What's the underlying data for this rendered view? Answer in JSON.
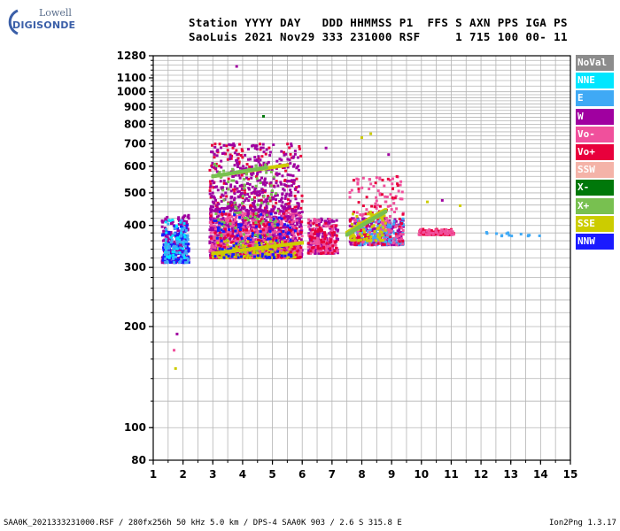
{
  "logo": {
    "top_word": "Lowell",
    "main_word": "DIGISONDE"
  },
  "header": {
    "line1": "Station YYYY DAY   DDD HHMMSS P1  FFS S AXN PPS IGA PS",
    "line2": "SaoLuis 2021 Nov29 333 231000 RSF     1 715 100 00- 11"
  },
  "footer": {
    "left": "SAA0K_2021333231000.RSF / 280fx256h 50 kHz 5.0 km / DPS-4 SAA0K 903 / 2.6 S 315.8 E",
    "right": "Ion2Png 1.3.17"
  },
  "legend": [
    {
      "label": "NoVal",
      "color": "#8c8c8c"
    },
    {
      "label": "NNE",
      "color": "#00e6ff"
    },
    {
      "label": "E",
      "color": "#3fa9f5"
    },
    {
      "label": "W",
      "color": "#a000a0"
    },
    {
      "label": "Vo-",
      "color": "#f0509c"
    },
    {
      "label": "Vo+",
      "color": "#e8003c"
    },
    {
      "label": "SSW",
      "color": "#f4b3a8"
    },
    {
      "label": "X-",
      "color": "#00780a"
    },
    {
      "label": "X+",
      "color": "#78c050"
    },
    {
      "label": "SSE",
      "color": "#cccc00"
    },
    {
      "label": "NNW",
      "color": "#1a1aff"
    }
  ],
  "chart_data": {
    "type": "scatter",
    "title": "",
    "xlabel": "",
    "ylabel": "",
    "xlim": [
      1,
      15
    ],
    "ylim": [
      80,
      1280
    ],
    "y_scale": "log",
    "x_ticks": [
      "1",
      "2",
      "3",
      "4",
      "5",
      "6",
      "7",
      "8",
      "9",
      "10",
      "11",
      "12",
      "13",
      "14",
      "15"
    ],
    "y_ticks": [
      "80",
      "100",
      "200",
      "300",
      "400",
      "500",
      "600",
      "700",
      "800",
      "900",
      "1000",
      "1100",
      "1280"
    ],
    "grid": true,
    "legend_position": "right",
    "clusters": [
      {
        "name": "W",
        "x_range": [
          1.3,
          2.2
        ],
        "y_range": [
          310,
          430
        ],
        "color": "#a000a0",
        "n": 220
      },
      {
        "name": "NNW",
        "x_range": [
          1.3,
          2.2
        ],
        "y_range": [
          310,
          400
        ],
        "color": "#1a1aff",
        "n": 140
      },
      {
        "name": "NNE",
        "x_range": [
          1.4,
          2.1
        ],
        "y_range": [
          320,
          420
        ],
        "color": "#00e6ff",
        "n": 50
      },
      {
        "name": "E",
        "x_range": [
          1.4,
          2.2
        ],
        "y_range": [
          310,
          420
        ],
        "color": "#3fa9f5",
        "n": 60
      },
      {
        "name": "W",
        "x_range": [
          2.9,
          6.0
        ],
        "y_range": [
          320,
          440
        ],
        "color": "#a000a0",
        "n": 900
      },
      {
        "name": "Vo-",
        "x_range": [
          2.9,
          6.0
        ],
        "y_range": [
          320,
          440
        ],
        "color": "#f0509c",
        "n": 500
      },
      {
        "name": "Vo+",
        "x_range": [
          2.9,
          6.0
        ],
        "y_range": [
          320,
          700
        ],
        "color": "#e8003c",
        "n": 300
      },
      {
        "name": "W",
        "x_range": [
          2.9,
          5.9
        ],
        "y_range": [
          440,
          700
        ],
        "color": "#a000a0",
        "n": 400
      },
      {
        "name": "X+",
        "x_range": [
          3.0,
          5.2
        ],
        "y_range": [
          320,
          620
        ],
        "color": "#78c050",
        "n": 120
      },
      {
        "name": "SSE",
        "x_range": [
          3.0,
          5.8
        ],
        "y_range": [
          320,
          360
        ],
        "color": "#cccc00",
        "n": 120
      },
      {
        "name": "NNW",
        "x_range": [
          3.0,
          5.8
        ],
        "y_range": [
          320,
          440
        ],
        "color": "#1a1aff",
        "n": 100
      },
      {
        "name": "W",
        "x_range": [
          6.2,
          7.2
        ],
        "y_range": [
          330,
          420
        ],
        "color": "#a000a0",
        "n": 180
      },
      {
        "name": "Vo-",
        "x_range": [
          6.2,
          7.2
        ],
        "y_range": [
          330,
          420
        ],
        "color": "#f0509c",
        "n": 120
      },
      {
        "name": "Vo+",
        "x_range": [
          6.2,
          7.2
        ],
        "y_range": [
          330,
          420
        ],
        "color": "#e8003c",
        "n": 60
      },
      {
        "name": "W",
        "x_range": [
          7.6,
          9.4
        ],
        "y_range": [
          350,
          420
        ],
        "color": "#a000a0",
        "n": 260
      },
      {
        "name": "E",
        "x_range": [
          7.8,
          9.4
        ],
        "y_range": [
          350,
          420
        ],
        "color": "#3fa9f5",
        "n": 150
      },
      {
        "name": "Vo-",
        "x_range": [
          7.6,
          9.4
        ],
        "y_range": [
          350,
          560
        ],
        "color": "#f0509c",
        "n": 140
      },
      {
        "name": "Vo+",
        "x_range": [
          7.6,
          9.4
        ],
        "y_range": [
          350,
          560
        ],
        "color": "#e8003c",
        "n": 60
      },
      {
        "name": "SSE",
        "x_range": [
          7.6,
          8.8
        ],
        "y_range": [
          360,
          440
        ],
        "color": "#cccc00",
        "n": 70
      },
      {
        "name": "Vo+",
        "x_range": [
          9.9,
          11.1
        ],
        "y_range": [
          375,
          390
        ],
        "color": "#e8003c",
        "n": 90
      },
      {
        "name": "Vo-",
        "x_range": [
          9.9,
          11.1
        ],
        "y_range": [
          375,
          390
        ],
        "color": "#f0509c",
        "n": 40
      },
      {
        "name": "E",
        "x_range": [
          12.1,
          14.0
        ],
        "y_range": [
          372,
          382
        ],
        "color": "#3fa9f5",
        "n": 14
      }
    ],
    "traces": [
      {
        "name": "SSE",
        "x": [
          3.0,
          5.5
        ],
        "y": [
          560,
          605
        ],
        "color": "#cccc00"
      },
      {
        "name": "X+",
        "x": [
          3.0,
          4.8
        ],
        "y": [
          560,
          595
        ],
        "color": "#78c050"
      },
      {
        "name": "SSE",
        "x": [
          3.0,
          6.0
        ],
        "y": [
          330,
          355
        ],
        "color": "#cccc00"
      },
      {
        "name": "SSE",
        "x": [
          7.5,
          8.8
        ],
        "y": [
          380,
          445
        ],
        "color": "#cccc00"
      },
      {
        "name": "X+",
        "x": [
          7.5,
          8.8
        ],
        "y": [
          375,
          440
        ],
        "color": "#78c050"
      }
    ],
    "outliers": [
      {
        "x": 3.8,
        "y": 1190,
        "color": "#a000a0"
      },
      {
        "x": 1.8,
        "y": 190,
        "color": "#a000a0"
      },
      {
        "x": 1.75,
        "y": 150,
        "color": "#cccc00"
      },
      {
        "x": 1.7,
        "y": 170,
        "color": "#f0509c"
      },
      {
        "x": 4.7,
        "y": 845,
        "color": "#00780a"
      },
      {
        "x": 6.8,
        "y": 680,
        "color": "#a000a0"
      },
      {
        "x": 8.0,
        "y": 730,
        "color": "#cccc00"
      },
      {
        "x": 8.3,
        "y": 750,
        "color": "#cccc00"
      },
      {
        "x": 8.9,
        "y": 650,
        "color": "#a000a0"
      },
      {
        "x": 10.2,
        "y": 470,
        "color": "#cccc00"
      },
      {
        "x": 11.3,
        "y": 458,
        "color": "#cccc00"
      },
      {
        "x": 10.7,
        "y": 475,
        "color": "#a000a0"
      }
    ]
  }
}
